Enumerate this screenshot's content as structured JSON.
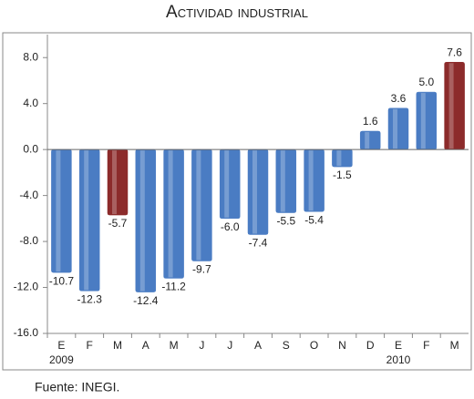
{
  "chart_data": {
    "type": "bar",
    "title": "Actividad industrial",
    "categories": [
      "E",
      "F",
      "M",
      "A",
      "M",
      "J",
      "J",
      "A",
      "S",
      "O",
      "N",
      "D",
      "E",
      "F",
      "M"
    ],
    "years": [
      "2009",
      null,
      null,
      null,
      null,
      null,
      null,
      null,
      null,
      null,
      null,
      null,
      "2010",
      null,
      null
    ],
    "values": [
      -10.7,
      -12.3,
      -5.7,
      -12.4,
      -11.2,
      -9.7,
      -6.0,
      -7.4,
      -5.5,
      -5.4,
      -1.5,
      1.6,
      3.6,
      5.0,
      7.6
    ],
    "value_labels": [
      "-10.7",
      "-12.3",
      "-5.7",
      "-12.4",
      "-11.2",
      "-9.7",
      "-6.0",
      "-7.4",
      "-5.5",
      "-5.4",
      "-1.5",
      "1.6",
      "3.6",
      "5.0",
      "7.6"
    ],
    "colors": [
      "#4a7cc3",
      "#4a7cc3",
      "#8c2b2b",
      "#4a7cc3",
      "#4a7cc3",
      "#4a7cc3",
      "#4a7cc3",
      "#4a7cc3",
      "#4a7cc3",
      "#4a7cc3",
      "#4a7cc3",
      "#4a7cc3",
      "#4a7cc3",
      "#4a7cc3",
      "#8c2b2b"
    ],
    "ylim": [
      -16,
      10
    ],
    "yticks": [
      {
        "value": -16,
        "label": "-16.0"
      },
      {
        "value": -12,
        "label": "-12.0"
      },
      {
        "value": -8,
        "label": "-8.0"
      },
      {
        "value": -4,
        "label": "-4.0"
      },
      {
        "value": 0,
        "label": "0.0"
      },
      {
        "value": 4,
        "label": "4.0"
      },
      {
        "value": 8,
        "label": "8.0"
      }
    ],
    "source": "Fuente: INEGI."
  }
}
